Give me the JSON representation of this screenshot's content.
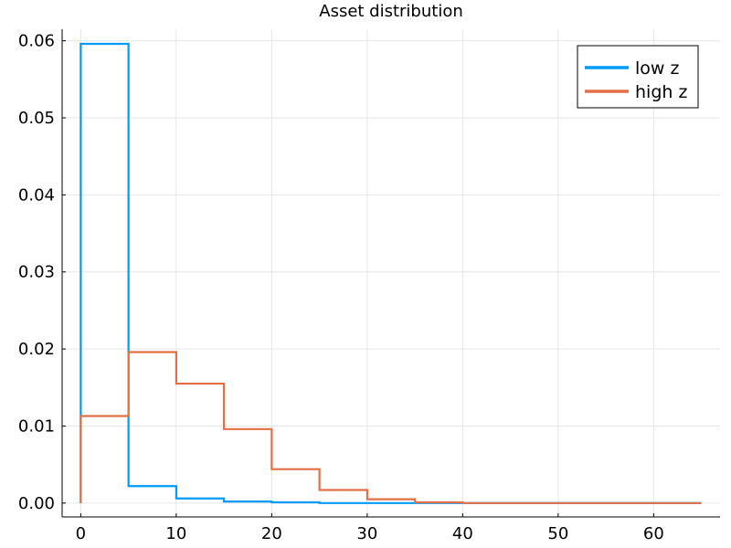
{
  "chart_data": {
    "type": "line",
    "title": "Asset distribution",
    "xlabel": "",
    "ylabel": "",
    "xlim": [
      -1.95,
      66.95
    ],
    "ylim": [
      -0.0018,
      0.0615
    ],
    "xticks": [
      0,
      10,
      20,
      30,
      40,
      50,
      60
    ],
    "xtick_labels": [
      "0",
      "10",
      "20",
      "30",
      "40",
      "50",
      "60"
    ],
    "yticks": [
      0.0,
      0.01,
      0.02,
      0.03,
      0.04,
      0.05,
      0.06
    ],
    "ytick_labels": [
      "0.00",
      "0.01",
      "0.02",
      "0.03",
      "0.04",
      "0.05",
      "0.06"
    ],
    "grid": true,
    "legend_position": "top-right",
    "bin_edges": [
      0,
      5,
      10,
      15,
      20,
      25,
      30,
      35,
      40,
      45,
      50,
      55,
      60,
      65
    ],
    "series": [
      {
        "name": "low z",
        "color": "#009af9",
        "values": [
          0.0596,
          0.0022,
          0.0006,
          0.0002,
          0.0001,
          0.0,
          0.0,
          0.0,
          0.0,
          0.0,
          0.0,
          0.0,
          0.0
        ]
      },
      {
        "name": "high z",
        "color": "#e26f46",
        "values": [
          0.0113,
          0.0196,
          0.0155,
          0.0096,
          0.0044,
          0.0017,
          0.0005,
          0.0001,
          0.0,
          0.0,
          0.0,
          0.0,
          0.0
        ]
      }
    ]
  }
}
